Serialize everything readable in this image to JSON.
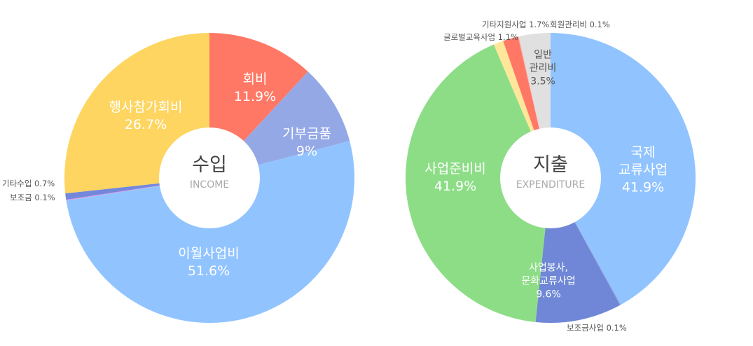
{
  "chart_data": [
    {
      "type": "pie",
      "center_title": "수입",
      "center_subtitle": "INCOME",
      "start": "top, clockwise",
      "slices": [
        {
          "label": "회비",
          "value": 11.9,
          "display": "11.9%",
          "color": "#FF7865"
        },
        {
          "label": "기부금품",
          "value": 9,
          "display": "9%",
          "color": "#95A8E6"
        },
        {
          "label": "이월사업비",
          "value": 51.6,
          "display": "51.6%",
          "color": "#91C4FF"
        },
        {
          "label": "보조금",
          "value": 0.1,
          "display": "0.1%",
          "color": "#D996E6"
        },
        {
          "label": "기타수입",
          "value": 0.7,
          "display": "0.7%",
          "color": "#7388DA"
        },
        {
          "label": "행사참가회비",
          "value": 26.7,
          "display": "26.7%",
          "color": "#FDD560"
        }
      ]
    },
    {
      "type": "pie",
      "center_title": "지출",
      "center_subtitle": "EXPENDITURE",
      "start": "top, clockwise",
      "slices": [
        {
          "label": "국제\n교류사업",
          "value": 41.9,
          "display": "41.9%",
          "color": "#91C4FF"
        },
        {
          "label": "보조금사업",
          "value": 0.1,
          "display": "0.1%",
          "color": "#8FA0E0"
        },
        {
          "label": "사업봉사,\n문화교류사업",
          "value": 9.6,
          "display": "9.6%",
          "color": "#6F87D6"
        },
        {
          "label": "사업준비비",
          "value": 41.9,
          "display": "41.9%",
          "color": "#8DDD87"
        },
        {
          "label": "글로벌교육사업",
          "value": 1.1,
          "display": "1.1%",
          "color": "#FFE699"
        },
        {
          "label": "기타지원사업",
          "value": 1.7,
          "display": "1.7%",
          "color": "#FF7865"
        },
        {
          "label": "회원관리비",
          "value": 0.1,
          "display": "0.1%",
          "color": "#F4B0B0"
        },
        {
          "label": "일반\n관리비",
          "value": 3.5,
          "display": "3.5%",
          "color": "#E0E0E0"
        }
      ]
    }
  ]
}
